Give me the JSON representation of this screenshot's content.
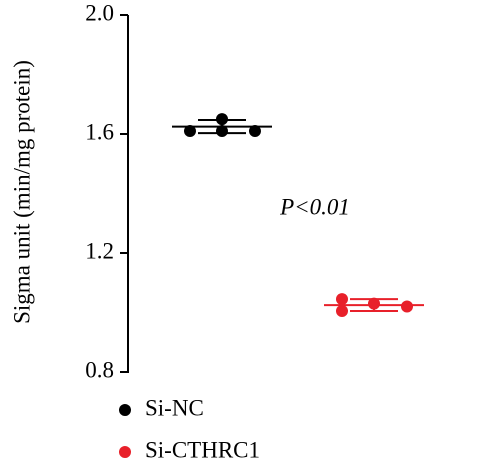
{
  "chart_data": {
    "type": "scatter",
    "y_label": "Sigma unit (min/mg protein)",
    "annotation": "P<0.01",
    "ylim": [
      0.8,
      2.0
    ],
    "yticks": [
      {
        "value": 0.8,
        "label": "0.8"
      },
      {
        "value": 1.2,
        "label": "1.2"
      },
      {
        "value": 1.6,
        "label": "1.6"
      },
      {
        "value": 2.0,
        "label": "2.0"
      }
    ],
    "series": [
      {
        "name": "Si-NC",
        "color": "#000000",
        "values": [
          1.61,
          1.61,
          1.61,
          1.65
        ],
        "mean": 1.625,
        "sd": 0.022
      },
      {
        "name": "Si-CTHRC1",
        "color": "#e8202a",
        "values": [
          1.045,
          1.03,
          1.02,
          1.005
        ],
        "mean": 1.025,
        "sd": 0.02
      }
    ]
  }
}
